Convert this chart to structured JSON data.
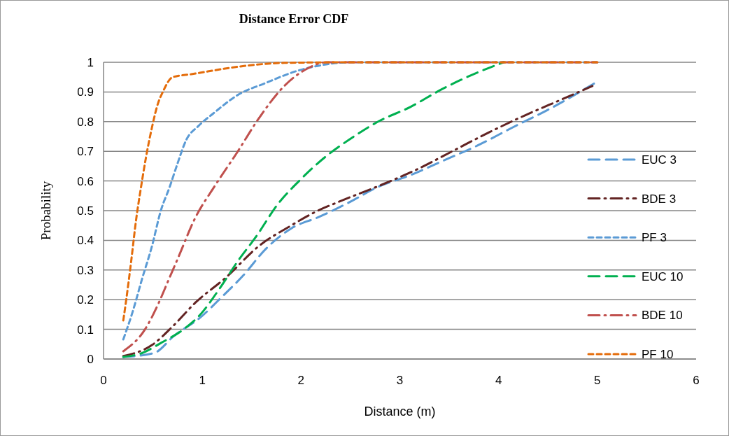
{
  "chart_data": {
    "type": "line",
    "title": "Distance Error CDF",
    "xlabel": "Distance (m)",
    "ylabel": "Probability",
    "xlim": [
      0,
      6
    ],
    "xticks": [
      0,
      1,
      2,
      3,
      4,
      5,
      6
    ],
    "ylim": [
      0,
      1
    ],
    "yticks": [
      0,
      0.1,
      0.2,
      0.3,
      0.4,
      0.5,
      0.6,
      0.7,
      0.8,
      0.9,
      1
    ],
    "grid": "y",
    "legend": "right",
    "marker": "none",
    "series": [
      {
        "name": "EUC 3",
        "color": "#5b9bd5",
        "line_style": "longdash",
        "x": [
          0.2,
          0.51,
          0.72,
          0.98,
          1.2,
          1.41,
          1.64,
          1.9,
          2.19,
          2.47,
          2.78,
          3.11,
          3.43,
          3.79,
          4.14,
          4.5,
          5
        ],
        "values": [
          0.007,
          0.02,
          0.08,
          0.14,
          0.21,
          0.28,
          0.37,
          0.44,
          0.48,
          0.525,
          0.58,
          0.62,
          0.667,
          0.72,
          0.78,
          0.84,
          0.935
        ]
      },
      {
        "name": "BDE 3",
        "color": "#632423",
        "line_style": "dashdot",
        "x": [
          0.2,
          0.49,
          0.7,
          0.93,
          1.24,
          1.57,
          1.9,
          2.14,
          2.42,
          2.8,
          3.18,
          3.53,
          3.91,
          4.26,
          4.64,
          4.95
        ],
        "values": [
          0.01,
          0.047,
          0.11,
          0.19,
          0.275,
          0.38,
          0.45,
          0.495,
          0.535,
          0.585,
          0.64,
          0.7,
          0.765,
          0.82,
          0.875,
          0.92
        ]
      },
      {
        "name": "PF 3",
        "color": "#5b9bd5",
        "line_style": "dashed",
        "x": [
          0.2,
          0.3,
          0.39,
          0.49,
          0.58,
          0.67,
          0.74,
          0.84,
          0.96,
          1.12,
          1.36,
          1.64,
          1.95,
          2.2,
          2.5,
          5
        ],
        "values": [
          0.066,
          0.165,
          0.27,
          0.38,
          0.5,
          0.58,
          0.65,
          0.74,
          0.785,
          0.83,
          0.89,
          0.93,
          0.97,
          0.99,
          1,
          1
        ]
      },
      {
        "name": "EUC 10",
        "color": "#00b050",
        "line_style": "longdash",
        "x": [
          0.2,
          0.39,
          0.58,
          0.81,
          0.98,
          1.17,
          1.36,
          1.55,
          1.76,
          1.98,
          2.26,
          2.49,
          2.78,
          3.11,
          3.43,
          3.79,
          4.05
        ],
        "values": [
          0.007,
          0.02,
          0.054,
          0.1,
          0.15,
          0.235,
          0.33,
          0.415,
          0.52,
          0.6,
          0.685,
          0.74,
          0.8,
          0.85,
          0.91,
          0.966,
          1
        ]
      },
      {
        "name": "BDE 10",
        "color": "#c0504d",
        "line_style": "dashdot",
        "x": [
          0.2,
          0.42,
          0.56,
          0.65,
          0.76,
          0.92,
          1.13,
          1.36,
          1.57,
          1.83,
          2.07,
          2.25,
          3,
          4,
          5
        ],
        "values": [
          0.026,
          0.1,
          0.19,
          0.26,
          0.345,
          0.47,
          0.585,
          0.7,
          0.81,
          0.92,
          0.98,
          1,
          1,
          1,
          1
        ]
      },
      {
        "name": "PF 10",
        "color": "#e46c0a",
        "line_style": "dashed",
        "x": [
          0.2,
          0.23,
          0.28,
          0.33,
          0.38,
          0.43,
          0.49,
          0.55,
          0.6,
          0.7,
          0.89,
          1.36,
          1.83,
          2.5,
          3,
          4,
          5
        ],
        "values": [
          0.13,
          0.2,
          0.33,
          0.47,
          0.58,
          0.68,
          0.78,
          0.86,
          0.9,
          0.95,
          0.96,
          0.985,
          0.998,
          1,
          1,
          1,
          1
        ]
      }
    ]
  }
}
